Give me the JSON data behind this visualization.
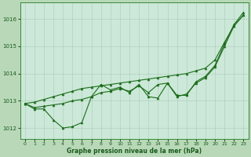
{
  "background_color": "#b8d8b8",
  "plot_bg_color": "#cce8d8",
  "grid_color": "#aaccbb",
  "line_color": "#1a6e1a",
  "xlabel": "Graphe pression niveau de la mer (hPa)",
  "ylim": [
    1011.6,
    1016.6
  ],
  "xlim": [
    -0.5,
    23.5
  ],
  "yticks": [
    1012,
    1013,
    1014,
    1015,
    1016
  ],
  "xticks": [
    0,
    1,
    2,
    3,
    4,
    5,
    6,
    7,
    8,
    9,
    10,
    11,
    12,
    13,
    14,
    15,
    16,
    17,
    18,
    19,
    20,
    21,
    22,
    23
  ],
  "sA": [
    1012.9,
    1012.7,
    1012.7,
    1012.3,
    1012.0,
    1012.05,
    1012.2,
    1013.15,
    1013.6,
    1013.4,
    1013.5,
    1013.3,
    1013.6,
    1013.15,
    1013.1,
    1013.65,
    1013.2,
    1013.2,
    1013.7,
    1013.9,
    1014.3,
    1015.1,
    1015.8,
    1016.25
  ],
  "sB": [
    1012.9,
    1012.75,
    1012.8,
    1012.85,
    1012.9,
    1013.0,
    1013.05,
    1013.15,
    1013.3,
    1013.35,
    1013.45,
    1013.35,
    1013.55,
    1013.3,
    1013.6,
    1013.65,
    1013.15,
    1013.25,
    1013.65,
    1013.85,
    1014.25,
    1015.0,
    1015.75,
    1016.15
  ],
  "sC": [
    1012.9,
    1012.95,
    1013.05,
    1013.15,
    1013.25,
    1013.35,
    1013.45,
    1013.5,
    1013.55,
    1013.6,
    1013.65,
    1013.7,
    1013.75,
    1013.8,
    1013.85,
    1013.9,
    1013.95,
    1014.0,
    1014.1,
    1014.2,
    1014.5,
    1015.15,
    1015.75,
    1016.15
  ]
}
